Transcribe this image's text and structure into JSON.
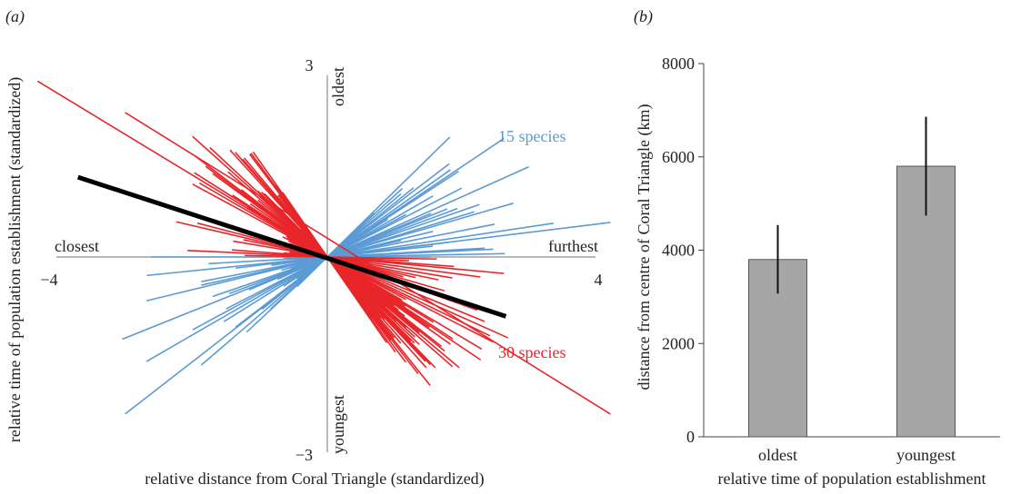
{
  "panel_a": {
    "label": "(a)",
    "xlabel": "relative distance from Coral Triangle (standardized)",
    "ylabel": "relative time of population establishment (standardized)",
    "x_end_labels": {
      "left": "closest",
      "right": "furthest"
    },
    "y_end_labels": {
      "top": "oldest",
      "bottom": "youngest"
    },
    "x_ticks": [
      "−4",
      "4"
    ],
    "y_ticks": [
      "3",
      "−3"
    ],
    "group_labels": {
      "blue": "15 species",
      "red": "30 species"
    }
  },
  "panel_b": {
    "label": "(b)"
  },
  "colors": {
    "blue": "#5b9bd5",
    "red": "#e8262a",
    "bar": "#a6a6a6",
    "trend": "#000000"
  },
  "chart_data": [
    {
      "type": "line",
      "xlim": [
        -4,
        4
      ],
      "ylim": [
        -3,
        3
      ],
      "grid": false,
      "overall_trend_slope": -0.33,
      "series": [
        {
          "name": "15 species",
          "slopes": [
            1.05,
            0.92,
            0.82,
            0.72,
            0.62,
            0.55,
            0.48,
            0.43,
            0.37,
            0.31,
            0.26,
            0.21,
            0.16,
            0.11,
            0.06,
            0.02,
            0.0,
            0.98,
            0.7,
            0.58,
            0.45,
            0.33,
            0.24,
            0.13,
            0.05,
            1.0,
            0.86,
            0.76,
            0.67,
            0.4
          ],
          "lengths": [
            3.1,
            3.3,
            3.6,
            3.8,
            4.1,
            3.5,
            3.9,
            4.3,
            3.7,
            3.4,
            3.6,
            3.9,
            4.0,
            3.5,
            3.6,
            3.1,
            3.4,
            2.4,
            2.8,
            3.0,
            2.6,
            2.7,
            2.5,
            2.8,
            2.9,
            2.2,
            2.6,
            2.7,
            2.4,
            3.2
          ],
          "left_fraction": 0.72
        },
        {
          "name": "30 species",
          "slopes": [
            -0.48,
            -0.58,
            -0.66,
            -0.72,
            -0.78,
            -0.84,
            -0.9,
            -0.96,
            -1.02,
            -1.1,
            -1.18,
            -1.26,
            -1.34,
            -1.42,
            -1.5,
            -0.52,
            -0.62,
            -0.7,
            -0.76,
            -0.82,
            -0.88,
            -0.94,
            -1.0,
            -1.06,
            -1.14,
            -1.22,
            -1.3,
            -1.38,
            -1.46,
            -1.55,
            -0.38,
            -0.28,
            -0.18,
            -0.1,
            -0.05,
            -0.02,
            -0.44,
            -0.34,
            -0.22,
            -0.55,
            -0.68,
            -0.74,
            -0.86,
            -0.92,
            -1.08,
            -1.2,
            -1.28,
            -1.36,
            -1.44,
            -1.52,
            -0.08,
            -0.14,
            -0.25,
            -0.31,
            -0.64,
            -0.8,
            -0.98,
            -1.12,
            -1.24,
            -1.4
          ],
          "lengths": [
            3.5,
            3.0,
            2.9,
            3.3,
            2.8,
            3.4,
            3.1,
            3.6,
            3.0,
            2.8,
            2.9,
            2.7,
            3.0,
            2.6,
            2.8,
            3.2,
            2.9,
            3.5,
            2.7,
            3.3,
            2.8,
            3.0,
            3.2,
            2.9,
            2.6,
            2.8,
            2.5,
            2.7,
            2.6,
            2.5,
            2.8,
            2.6,
            2.9,
            3.1,
            2.7,
            2.5,
            3.0,
            2.8,
            2.6,
            3.3,
            3.1,
            2.9,
            2.7,
            2.6,
            2.8,
            2.7,
            2.6,
            2.5,
            2.4,
            2.6,
            2.9,
            2.7,
            3.0,
            2.8,
            3.2,
            3.0,
            2.8,
            2.7,
            2.6,
            2.5
          ]
        }
      ],
      "long_lines": [
        {
          "series": "30 species",
          "x1": -3.0,
          "y1": 2.3,
          "x2": 4.2,
          "y2": -2.5
        },
        {
          "series": "30 species",
          "x1": -4.3,
          "y1": 2.8,
          "x2": 0.0,
          "y2": 0.0
        },
        {
          "series": "15 species",
          "x1": -3.0,
          "y1": -2.5,
          "x2": 0.0,
          "y2": 0.0
        },
        {
          "series": "15 species",
          "x1": 0.0,
          "y1": 0.0,
          "x2": 4.2,
          "y2": 0.55
        }
      ]
    },
    {
      "type": "bar",
      "categories": [
        "oldest",
        "youngest"
      ],
      "values": [
        3800,
        5800
      ],
      "error": [
        [
          3070,
          4540
        ],
        [
          4740,
          6860
        ]
      ],
      "ylabel": "distance from centre of Coral Triangle (km)",
      "xlabel": "relative time of population establishment",
      "ylim": [
        0,
        8000
      ],
      "yticks": [
        0,
        2000,
        4000,
        6000,
        8000
      ],
      "grid": false
    }
  ]
}
